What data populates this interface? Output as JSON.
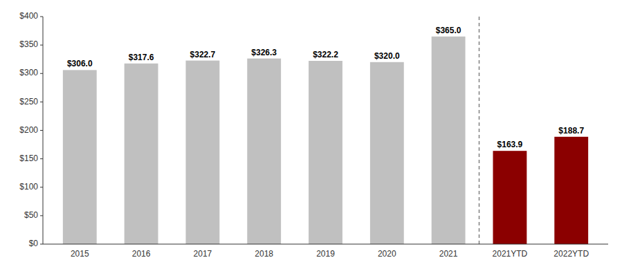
{
  "chart_data": {
    "type": "bar",
    "categories": [
      "2015",
      "2016",
      "2017",
      "2018",
      "2019",
      "2020",
      "2021",
      "2021YTD",
      "2022YTD"
    ],
    "values": [
      306.0,
      317.6,
      322.7,
      326.3,
      322.2,
      320.0,
      365.0,
      163.9,
      188.7
    ],
    "value_labels": [
      "$306.0",
      "$317.6",
      "$322.7",
      "$326.3",
      "$322.2",
      "$320.0",
      "$365.0",
      "$163.9",
      "$188.7"
    ],
    "colors": [
      "#c0c0c0",
      "#c0c0c0",
      "#c0c0c0",
      "#c0c0c0",
      "#c0c0c0",
      "#c0c0c0",
      "#c0c0c0",
      "#8b0000",
      "#8b0000"
    ],
    "ylim": [
      0,
      400
    ],
    "yticks": [
      {
        "value": 0,
        "label": "$0"
      },
      {
        "value": 50,
        "label": "$50"
      },
      {
        "value": 100,
        "label": "$100"
      },
      {
        "value": 150,
        "label": "$150"
      },
      {
        "value": 200,
        "label": "$200"
      },
      {
        "value": 250,
        "label": "$250"
      },
      {
        "value": 300,
        "label": "$300"
      },
      {
        "value": 350,
        "label": "$350"
      },
      {
        "value": 400,
        "label": "$400"
      }
    ],
    "grid": false,
    "data_labels": true
  }
}
